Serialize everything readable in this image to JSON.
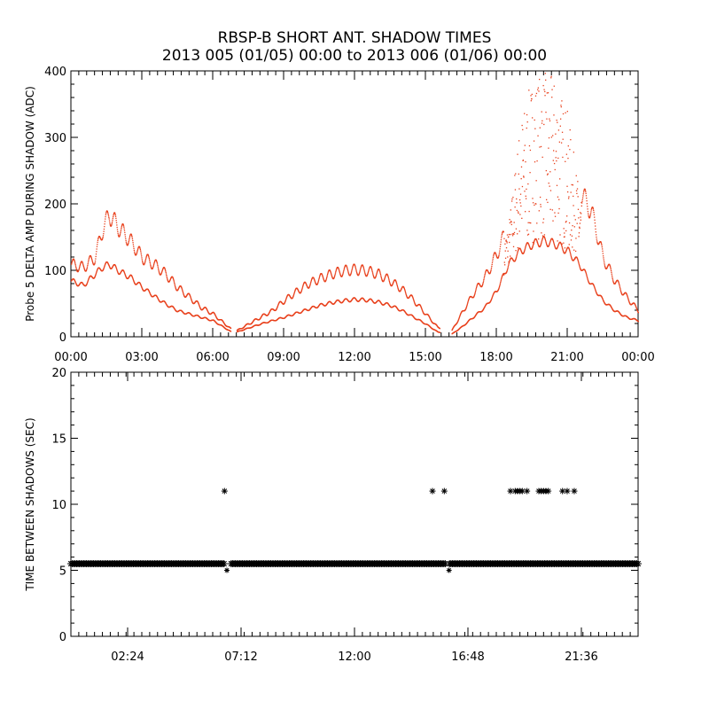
{
  "title_line1": "RBSP-B SHORT ANT. SHADOW TIMES",
  "title_line2": "2013 005 (01/05) 00:00 to 2013 006 (01/06) 00:00",
  "colors": {
    "top_series": "#e8401c",
    "bottom_series": "#000000",
    "axes": "#000000"
  },
  "chart_data": [
    {
      "type": "scatter",
      "ylabel": "Probe 5 DELTA AMP DURING SHADOW (ADC)",
      "xlabel": "",
      "xlim": [
        "00:00",
        "24:00"
      ],
      "ylim": [
        0,
        400
      ],
      "x_tick_labels": [
        "00:00",
        "03:00",
        "06:00",
        "09:00",
        "12:00",
        "15:00",
        "18:00",
        "21:00",
        "00:00"
      ],
      "y_tick_labels": [
        "0",
        "100",
        "200",
        "300",
        "400"
      ],
      "y_ticks": [
        0,
        100,
        200,
        300,
        400
      ],
      "grid": false,
      "series": [
        {
          "description_points_hours_vs_adc": "envelope samples",
          "x": [
            0.0,
            0.5,
            1.0,
            1.3,
            1.6,
            2.0,
            2.5,
            3.0,
            3.5,
            4.0,
            4.5,
            5.0,
            5.5,
            6.0,
            6.5,
            6.9,
            7.0,
            7.5,
            8.0,
            8.5,
            9.0,
            9.5,
            10.0,
            10.5,
            11.0,
            11.5,
            12.0,
            12.5,
            13.0,
            13.5,
            14.0,
            14.5,
            15.0,
            15.5,
            16.1,
            16.5,
            17.0,
            17.5,
            18.0,
            18.5,
            19.0,
            19.5,
            20.0,
            20.5,
            21.0,
            21.5,
            22.0,
            22.5,
            23.0,
            23.5,
            24.0
          ],
          "upper": [
            110,
            105,
            120,
            160,
            185,
            165,
            145,
            120,
            110,
            95,
            75,
            60,
            45,
            35,
            20,
            8,
            10,
            20,
            30,
            40,
            55,
            68,
            80,
            88,
            95,
            100,
            102,
            100,
            95,
            85,
            72,
            55,
            35,
            15,
            10,
            35,
            65,
            90,
            125,
            170,
            330,
            390,
            400,
            390,
            340,
            220,
            190,
            120,
            85,
            60,
            40
          ],
          "lower": [
            85,
            78,
            95,
            105,
            110,
            100,
            90,
            75,
            62,
            50,
            40,
            35,
            30,
            25,
            14,
            5,
            8,
            14,
            20,
            25,
            30,
            36,
            42,
            48,
            52,
            55,
            57,
            56,
            53,
            48,
            40,
            30,
            20,
            8,
            5,
            15,
            30,
            45,
            70,
            110,
            130,
            140,
            145,
            140,
            130,
            110,
            80,
            55,
            40,
            30,
            25
          ]
        }
      ]
    },
    {
      "type": "scatter",
      "ylabel": "TIME BETWEEN SHADOWS (SEC)",
      "xlabel": "",
      "xlim": [
        "00:00",
        "24:00"
      ],
      "ylim": [
        0,
        20
      ],
      "x_tick_labels": [
        "02:24",
        "07:12",
        "12:00",
        "16:48",
        "21:36"
      ],
      "y_tick_labels": [
        "0",
        "5",
        "10",
        "15",
        "20"
      ],
      "y_ticks": [
        0,
        5,
        10,
        15,
        20
      ],
      "grid": false,
      "series": [
        {
          "marker": "asterisk",
          "baseline_value": 5.5,
          "baseline_gaps_hours": [
            [
              6.5,
              6.75
            ],
            [
              15.85,
              16.0
            ]
          ],
          "outliers_x": [
            6.5,
            15.3,
            15.8,
            18.6,
            18.8,
            18.9,
            19.0,
            19.1,
            19.3,
            19.8,
            19.9,
            20.0,
            20.1,
            20.2,
            20.8,
            21.0,
            21.3
          ],
          "outliers_y": [
            11,
            11,
            11,
            11,
            11,
            11,
            11,
            11,
            11,
            11,
            11,
            11,
            11,
            11,
            11,
            11,
            11
          ],
          "baseline_small_spikes_x": [
            6.6,
            16.0
          ],
          "baseline_small_spikes_y": [
            5.0,
            5.0
          ]
        }
      ]
    }
  ]
}
